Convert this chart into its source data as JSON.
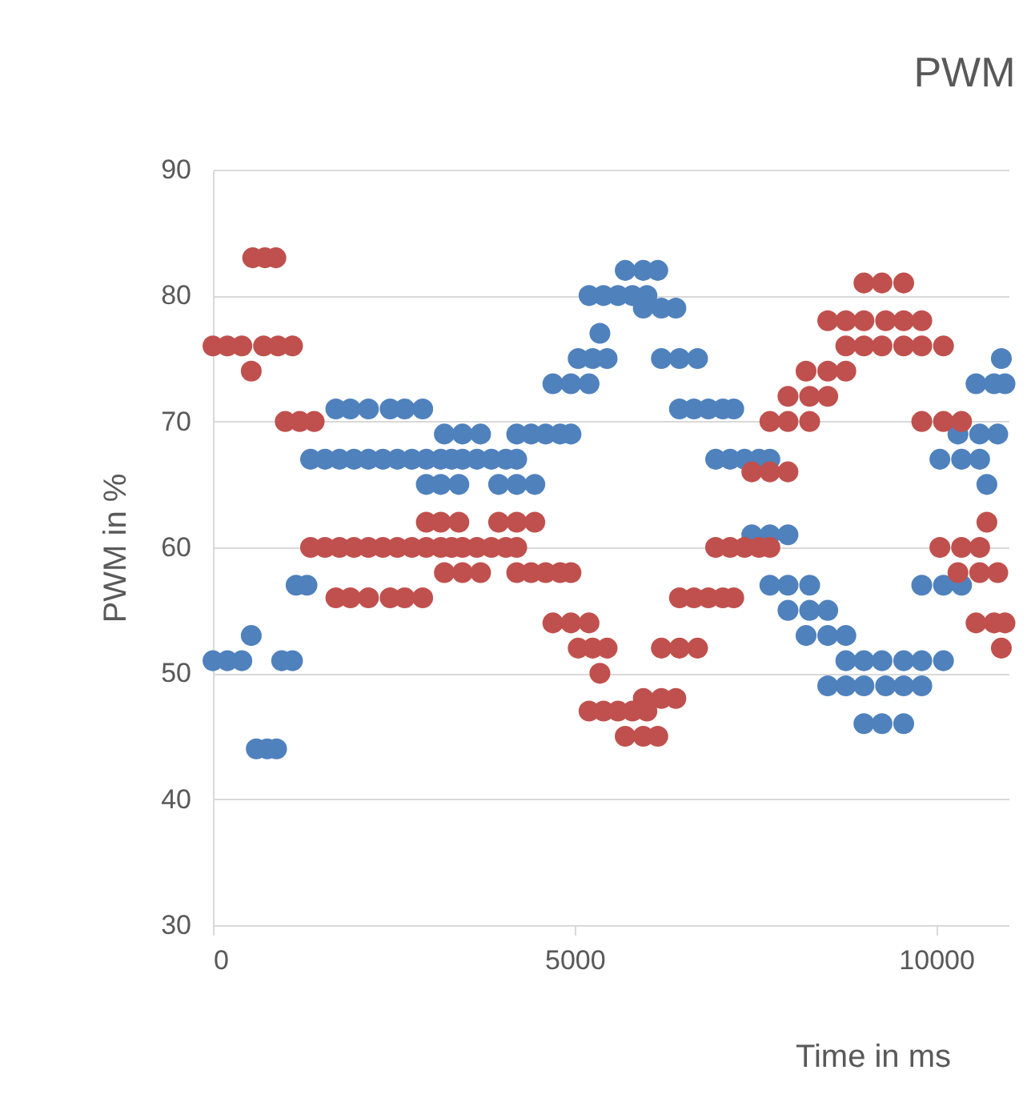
{
  "chart_data": {
    "type": "scatter",
    "title": "PWM",
    "xlabel": "Time in ms",
    "ylabel": "PWM in %",
    "xlim": [
      0,
      11000
    ],
    "xticks": [
      0,
      5000,
      10000
    ],
    "ylim": [
      30,
      90
    ],
    "yticks": [
      30,
      40,
      50,
      60,
      70,
      80,
      90
    ],
    "grid": "y",
    "legend": false,
    "marker": "circle",
    "series": [
      {
        "color": "#4f81bd",
        "x": [
          0,
          200,
          400,
          530,
          600,
          750,
          880,
          950,
          1100,
          1150,
          1300,
          1350,
          1550,
          1750,
          1950,
          2150,
          2350,
          2550,
          2750,
          2950,
          3150,
          3300,
          1700,
          1900,
          2150,
          2450,
          2650,
          2900,
          2950,
          3150,
          3400,
          3200,
          3450,
          3700,
          3450,
          3650,
          3850,
          4050,
          4200,
          3950,
          4200,
          4450,
          4200,
          4400,
          4600,
          4800,
          4950,
          4700,
          4950,
          5200,
          5050,
          5250,
          5450,
          5350,
          5200,
          5400,
          5600,
          5800,
          6000,
          5700,
          5950,
          6150,
          5950,
          6200,
          6400,
          6200,
          6450,
          6700,
          6450,
          6650,
          6850,
          7050,
          7200,
          6950,
          7150,
          7350,
          7550,
          7700,
          7450,
          7700,
          7950,
          7700,
          7950,
          8250,
          7950,
          8250,
          8500,
          8200,
          8500,
          8750,
          8500,
          8750,
          9000,
          8750,
          9000,
          9250,
          9000,
          9250,
          9550,
          9300,
          9550,
          9800,
          9550,
          9800,
          10100,
          9800,
          10100,
          10350,
          10050,
          10350,
          10600,
          10300,
          10600,
          10850,
          10700,
          10550,
          10800,
          10950,
          10900
        ],
        "values": [
          51,
          51,
          51,
          53,
          44,
          44,
          44,
          51,
          51,
          57,
          57,
          67,
          67,
          67,
          67,
          67,
          67,
          67,
          67,
          67,
          67,
          67,
          71,
          71,
          71,
          71,
          71,
          71,
          65,
          65,
          65,
          69,
          69,
          69,
          67,
          67,
          67,
          67,
          67,
          65,
          65,
          65,
          69,
          69,
          69,
          69,
          69,
          73,
          73,
          73,
          75,
          75,
          75,
          77,
          80,
          80,
          80,
          80,
          80,
          82,
          82,
          82,
          79,
          79,
          79,
          75,
          75,
          75,
          71,
          71,
          71,
          71,
          71,
          67,
          67,
          67,
          67,
          67,
          61,
          61,
          61,
          57,
          57,
          57,
          55,
          55,
          55,
          53,
          53,
          53,
          49,
          49,
          49,
          51,
          51,
          51,
          46,
          46,
          46,
          49,
          49,
          49,
          51,
          51,
          51,
          57,
          57,
          57,
          67,
          67,
          67,
          69,
          69,
          69,
          65,
          73,
          73,
          73,
          75
        ]
      },
      {
        "color": "#c0504d",
        "x": [
          0,
          200,
          400,
          530,
          550,
          720,
          870,
          700,
          900,
          1100,
          1000,
          1200,
          1400,
          1350,
          1550,
          1750,
          1950,
          2150,
          2350,
          2550,
          2750,
          2950,
          3150,
          3300,
          1700,
          1900,
          2150,
          2450,
          2650,
          2900,
          2950,
          3150,
          3400,
          3200,
          3450,
          3700,
          3450,
          3650,
          3850,
          4050,
          4200,
          3950,
          4200,
          4450,
          4200,
          4400,
          4600,
          4800,
          4950,
          4700,
          4950,
          5200,
          5050,
          5250,
          5450,
          5350,
          5200,
          5400,
          5600,
          5800,
          6000,
          5700,
          5950,
          6150,
          5950,
          6200,
          6400,
          6200,
          6450,
          6700,
          6450,
          6650,
          6850,
          7050,
          7200,
          6950,
          7150,
          7350,
          7550,
          7700,
          7450,
          7700,
          7950,
          7700,
          7950,
          8250,
          7950,
          8250,
          8500,
          8200,
          8500,
          8750,
          8500,
          8750,
          9000,
          8750,
          9000,
          9250,
          9000,
          9250,
          9550,
          9300,
          9550,
          9800,
          9550,
          9800,
          10100,
          9800,
          10100,
          10350,
          10050,
          10350,
          10600,
          10300,
          10600,
          10850,
          10700,
          10550,
          10800,
          10950,
          10900
        ],
        "values": [
          76,
          76,
          76,
          74,
          83,
          83,
          83,
          76,
          76,
          76,
          70,
          70,
          70,
          60,
          60,
          60,
          60,
          60,
          60,
          60,
          60,
          60,
          60,
          60,
          56,
          56,
          56,
          56,
          56,
          56,
          62,
          62,
          62,
          58,
          58,
          58,
          60,
          60,
          60,
          60,
          60,
          62,
          62,
          62,
          58,
          58,
          58,
          58,
          58,
          54,
          54,
          54,
          52,
          52,
          52,
          50,
          47,
          47,
          47,
          47,
          47,
          45,
          45,
          45,
          48,
          48,
          48,
          52,
          52,
          52,
          56,
          56,
          56,
          56,
          56,
          60,
          60,
          60,
          60,
          60,
          66,
          66,
          66,
          70,
          70,
          70,
          72,
          72,
          72,
          74,
          74,
          74,
          78,
          78,
          78,
          76,
          76,
          76,
          81,
          81,
          81,
          78,
          78,
          78,
          76,
          76,
          76,
          70,
          70,
          70,
          60,
          60,
          60,
          58,
          58,
          58,
          62,
          54,
          54,
          54,
          52
        ]
      }
    ]
  }
}
